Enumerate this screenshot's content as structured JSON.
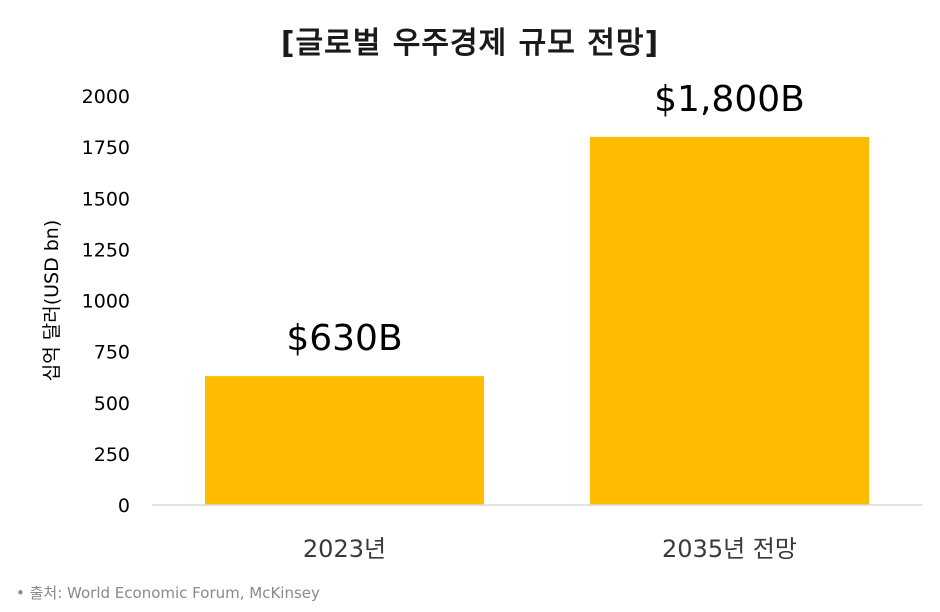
{
  "chart_data": {
    "type": "bar",
    "title": "[글로벌 우주경제 규모 전망]",
    "categories": [
      "2023년",
      "2035년 전망"
    ],
    "values": [
      630,
      1800
    ],
    "data_labels": [
      "$630B",
      "$1,800B"
    ],
    "ylabel": "십억 달러(USD bn)",
    "xlabel": "",
    "ylim": [
      0,
      2000
    ],
    "yticks": [
      "0",
      "250",
      "500",
      "750",
      "1000",
      "1250",
      "1500",
      "1750",
      "2000"
    ],
    "grid": false,
    "legend": "none",
    "bar_color": "#FFBB00"
  },
  "source": "• 출처: World Economic Forum, McKinsey"
}
